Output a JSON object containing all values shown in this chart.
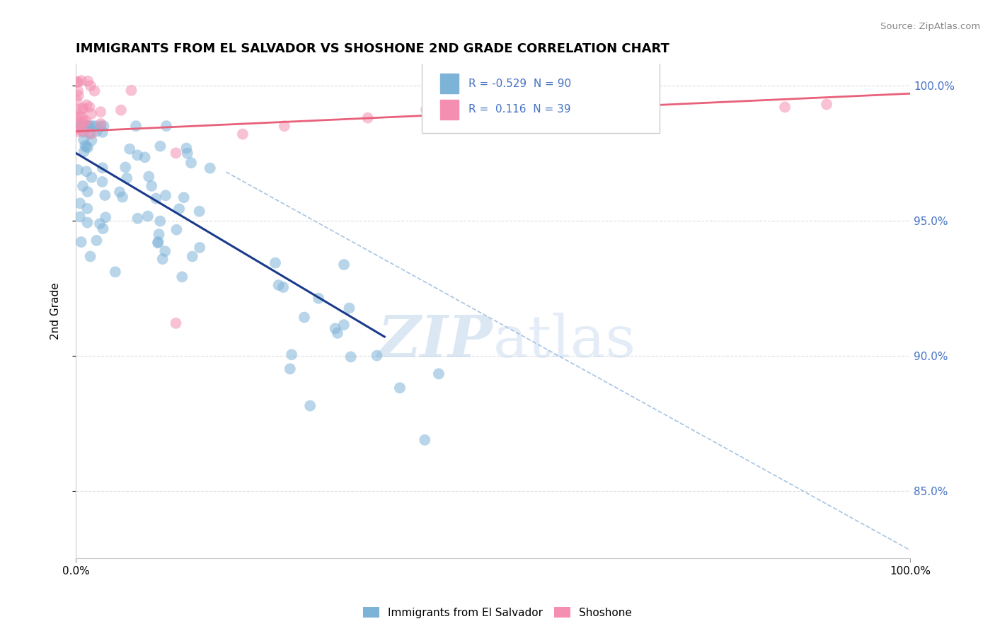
{
  "title": "IMMIGRANTS FROM EL SALVADOR VS SHOSHONE 2ND GRADE CORRELATION CHART",
  "source": "Source: ZipAtlas.com",
  "ylabel": "2nd Grade",
  "legend_label_1": "Immigrants from El Salvador",
  "legend_label_2": "Shoshone",
  "R1": -0.529,
  "N1": 90,
  "R2": 0.116,
  "N2": 39,
  "blue_color": "#7EB3D8",
  "pink_color": "#F48FB1",
  "blue_line_color": "#1A3A8C",
  "pink_line_color": "#E8607A",
  "dashed_line_color": "#A8C4E0",
  "watermark_zip": "ZIP",
  "watermark_atlas": "atlas",
  "xlim": [
    0.0,
    1.0
  ],
  "ylim": [
    0.825,
    1.008
  ],
  "y_ticks": [
    0.85,
    0.9,
    0.95,
    1.0
  ],
  "y_tick_labels": [
    "85.0%",
    "90.0%",
    "95.0%",
    "100.0%"
  ],
  "x_ticks": [
    0.0,
    1.0
  ],
  "x_tick_labels": [
    "0.0%",
    "100.0%"
  ]
}
